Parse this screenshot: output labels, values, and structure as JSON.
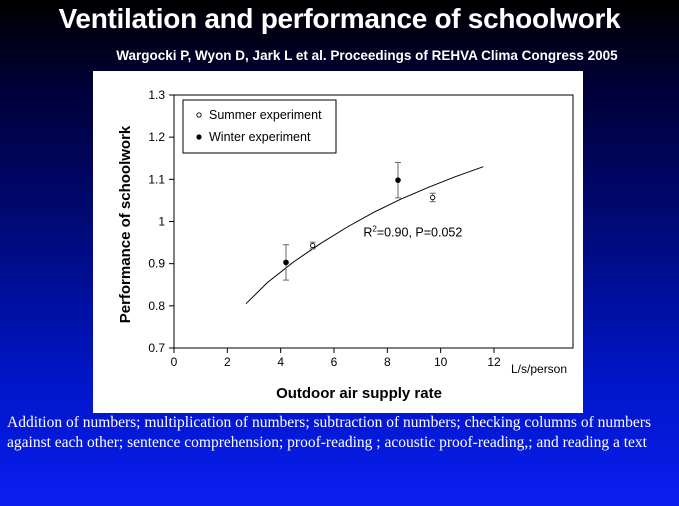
{
  "slide": {
    "title": "Ventilation and performance of schoolwork",
    "subtitle": "Wargocki P, Wyon D, Jark L  et al.  Proceedings of REHVA Clima Congress 2005",
    "footer": "Addition of numbers; multiplication of numbers; subtraction of numbers; checking columns of numbers against each other; sentence comprehension; proof-reading ; acoustic proof-reading,; and reading a text"
  },
  "chart_data": {
    "type": "scatter",
    "title": "",
    "xlabel": "Outdoor air supply rate",
    "xunit": "L/s/person",
    "ylabel": "Performance of schoolwork",
    "xlim": [
      0,
      12
    ],
    "ylim": [
      0.7,
      1.3
    ],
    "xticks": [
      0,
      2,
      4,
      6,
      8,
      10,
      12
    ],
    "yticks": [
      0.7,
      0.8,
      0.9,
      1,
      1.1,
      1.2,
      1.3
    ],
    "grid": false,
    "legend_position": "top-left",
    "series": [
      {
        "name": "Summer experiment",
        "marker": "open-circle",
        "points": [
          {
            "x": 5.2,
            "y": 0.943,
            "err": 0.008
          },
          {
            "x": 9.7,
            "y": 1.057,
            "err": 0.01
          }
        ]
      },
      {
        "name": "Winter experiment",
        "marker": "filled-circle",
        "points": [
          {
            "x": 4.2,
            "y": 0.903,
            "err": 0.042
          },
          {
            "x": 8.4,
            "y": 1.098,
            "err": 0.042
          }
        ]
      }
    ],
    "fit": {
      "x": [
        2.7,
        3.5,
        4.5,
        5.5,
        6.5,
        7.5,
        8.5,
        9.5,
        10.5,
        11.6
      ],
      "y": [
        0.805,
        0.855,
        0.905,
        0.948,
        0.987,
        1.022,
        1.053,
        1.08,
        1.105,
        1.13
      ]
    },
    "annotation": {
      "x": 7.1,
      "y": 0.965,
      "base": "R",
      "sup": "2",
      "rest": "=0.90, P=0.052"
    }
  },
  "colors": {
    "text": "#ffffff",
    "chart_background": "#ffffff",
    "ink": "#000000",
    "error_bar": "#666666"
  }
}
